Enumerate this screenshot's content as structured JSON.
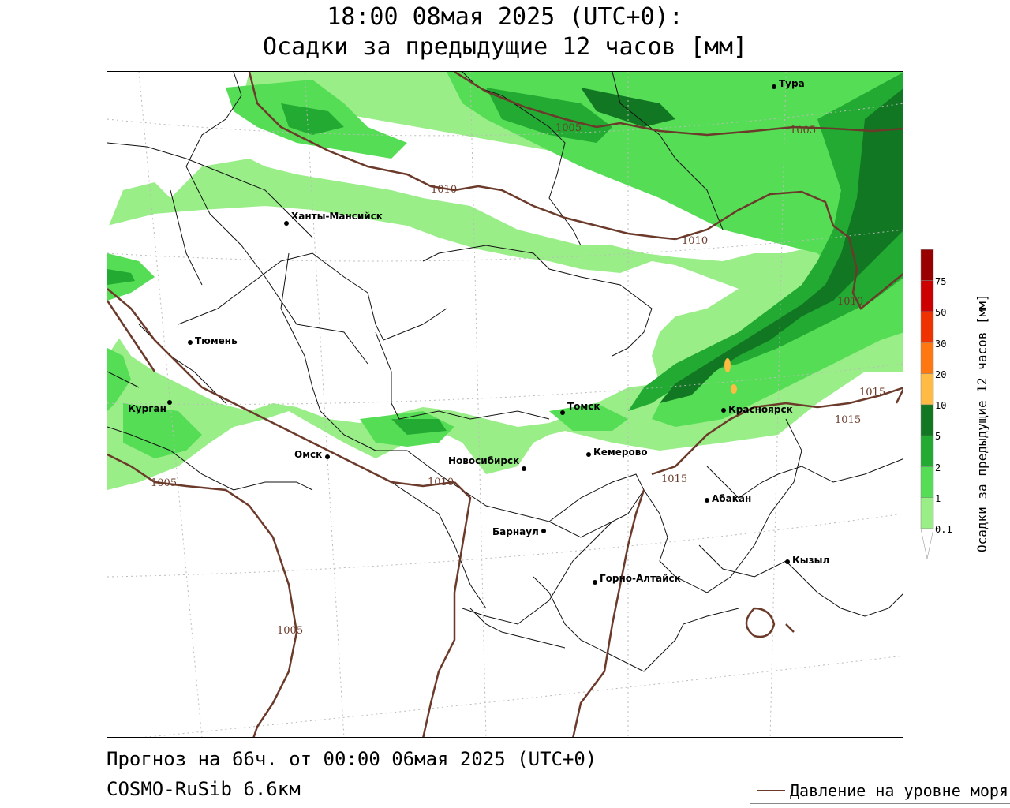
{
  "title": {
    "line1": "18:00 08мая 2025 (UTC+0):",
    "line2": "Осадки за предыдущие 12 часов [мм]"
  },
  "footer": {
    "forecast": "Прогноз на 66ч. от 00:00 06мая 2025 (UTC+0)",
    "model": "COSMO-RuSib 6.6км"
  },
  "legend": {
    "pressure_label": "Давление на уровне моря",
    "pressure_color": "#6b3a2a"
  },
  "colorbar": {
    "title": "Осадки за предыдущие 12 часов [мм]",
    "levels": [
      "0.1",
      "1",
      "2",
      "5",
      "10",
      "20",
      "30",
      "50",
      "75"
    ],
    "colors": [
      "#ffffff",
      "#99ee88",
      "#55dd55",
      "#22aa33",
      "#117722",
      "#ffbb44",
      "#ff7711",
      "#ee3300",
      "#cc0000",
      "#990000",
      "#aaaaaa"
    ]
  },
  "cities": [
    {
      "name": "Тура",
      "id": "tura"
    },
    {
      "name": "Ханты-Мансийск",
      "id": "khanty"
    },
    {
      "name": "Тюмень",
      "id": "tyumen"
    },
    {
      "name": "Курган",
      "id": "kurgan"
    },
    {
      "name": "Омск",
      "id": "omsk"
    },
    {
      "name": "Томск",
      "id": "tomsk"
    },
    {
      "name": "Красноярск",
      "id": "krasnoyarsk"
    },
    {
      "name": "Кемерово",
      "id": "kemerovo"
    },
    {
      "name": "Новосибирск",
      "id": "novosibirsk"
    },
    {
      "name": "Абакан",
      "id": "abakan"
    },
    {
      "name": "Барнаул",
      "id": "barnaul"
    },
    {
      "name": "Кызыл",
      "id": "kyzyl"
    },
    {
      "name": "Горно-Алтайск",
      "id": "gorno"
    }
  ],
  "isobar_labels": [
    "1005",
    "1005",
    "1010",
    "1010",
    "1010",
    "1015",
    "1015",
    "1005",
    "1005",
    "1010",
    "1015"
  ]
}
